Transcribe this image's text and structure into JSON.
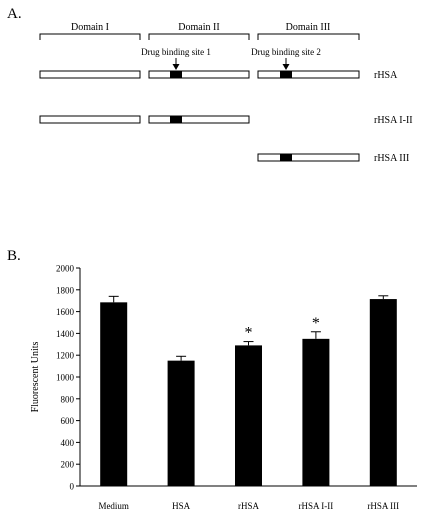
{
  "panel_a": {
    "label": "A.",
    "domains": [
      {
        "name": "Domain I"
      },
      {
        "name": "Domain II"
      },
      {
        "name": "Domain III"
      }
    ],
    "binding_sites": [
      {
        "label": "Drug binding site 1"
      },
      {
        "label": "Drug binding site 2"
      }
    ],
    "constructs": [
      {
        "name": "rHSA",
        "domains": [
          "I",
          "II",
          "III"
        ]
      },
      {
        "name": "rHSA I-II",
        "domains": [
          "I",
          "II"
        ]
      },
      {
        "name": "rHSA III",
        "domains": [
          "III"
        ]
      }
    ]
  },
  "panel_b": {
    "label": "B."
  },
  "chart_data": {
    "type": "bar",
    "categories": [
      "Medium",
      "HSA",
      "rHSA",
      "rHSA I-II",
      "rHSA III"
    ],
    "values": [
      1685,
      1150,
      1290,
      1350,
      1715
    ],
    "errors": [
      55,
      40,
      35,
      65,
      30
    ],
    "significant": [
      false,
      false,
      true,
      true,
      false
    ],
    "significance_marker": "*",
    "ylabel": "Fluorescent Units",
    "xlabel": "",
    "ylim": [
      0,
      2000
    ],
    "yticks": [
      "0",
      "200",
      "400",
      "600",
      "800",
      "1000",
      "1200",
      "1400",
      "1600",
      "1800",
      "2000"
    ],
    "bar_color": "#000000",
    "grid": false
  }
}
